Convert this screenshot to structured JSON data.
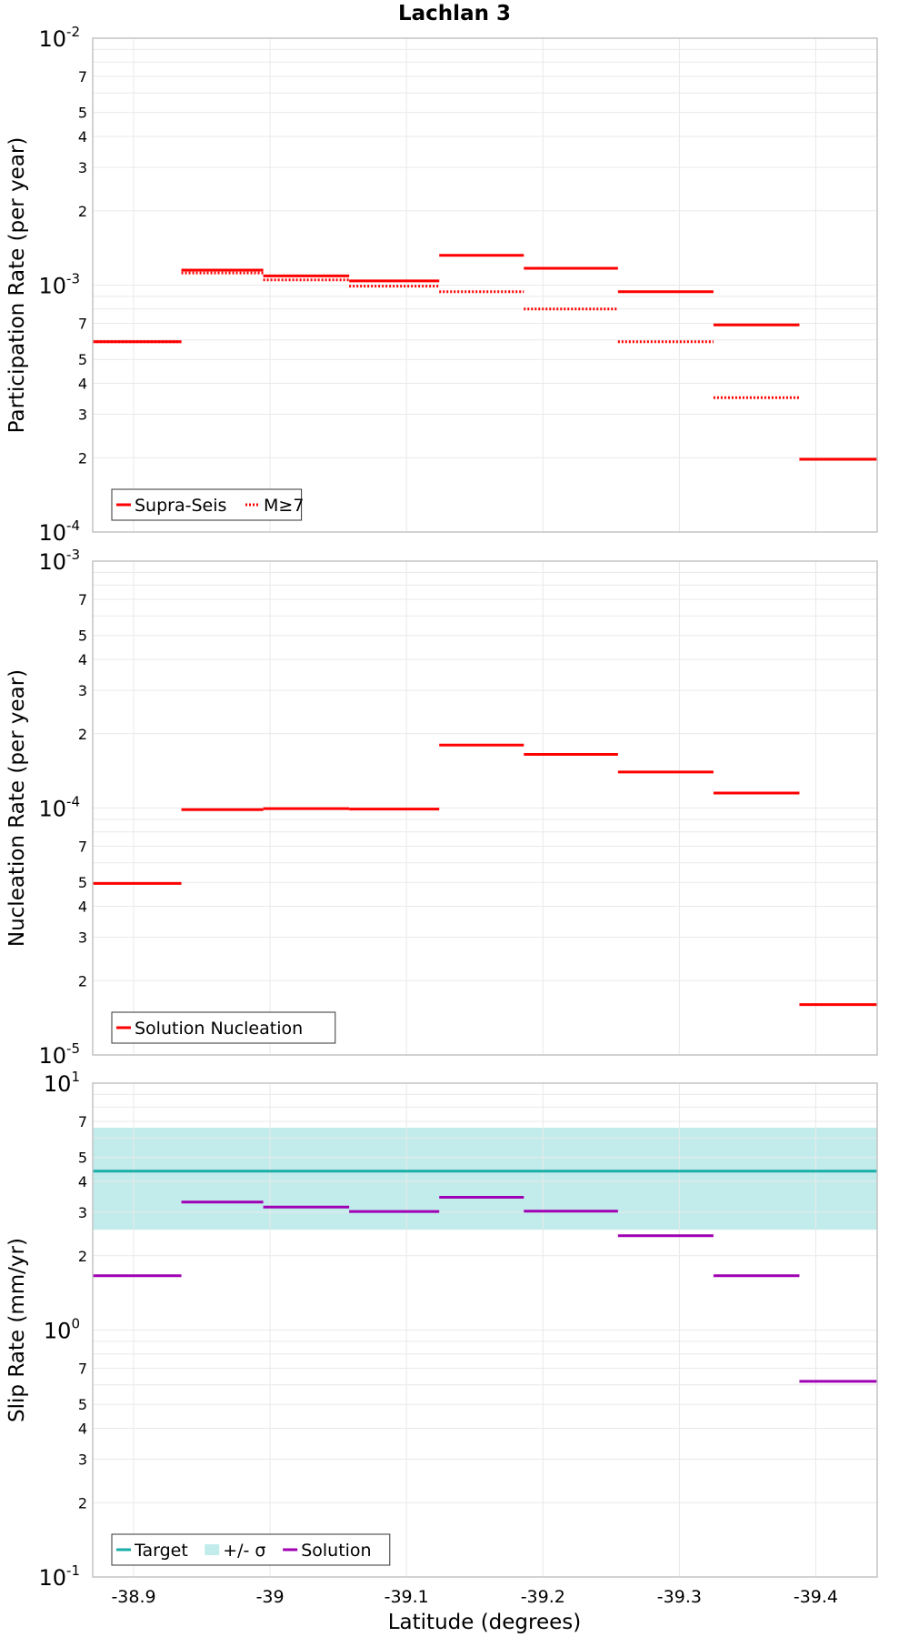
{
  "title": "Lachlan 3",
  "xlabel": "Latitude (degrees)",
  "x_ticks": [
    "-38.9",
    "-39",
    "-39.1",
    "-39.2",
    "-39.3",
    "-39.4"
  ],
  "colors": {
    "supra_seis": "#ff0000",
    "m7": "#ff0000",
    "nucleation": "#ff0000",
    "target": "#1aaea8",
    "sigma": "#c2ecec",
    "solution": "#a000b4"
  },
  "chart_data": [
    {
      "type": "line",
      "step": true,
      "yscale": "log",
      "xlim": [
        -38.87,
        -39.445
      ],
      "ylim": [
        0.0001,
        0.01
      ],
      "ylabel": "Participation Rate (per year)",
      "y_major_ticks": [
        {
          "base": "10",
          "exp": "-2"
        },
        {
          "base": "10",
          "exp": "-3"
        },
        {
          "base": "10",
          "exp": "-4"
        }
      ],
      "y_minor_ticks": [
        "7",
        "5",
        "4",
        "3",
        "2",
        "7",
        "5",
        "4",
        "3",
        "2"
      ],
      "legend": {
        "position": "bottom-left",
        "entries": [
          "Supra-Seis",
          "M≥7"
        ]
      },
      "series": [
        {
          "name": "Supra-Seis",
          "style": "solid",
          "segments": [
            {
              "x": [
                -38.87,
                -38.935
              ],
              "y": 0.00059
            },
            {
              "x": [
                -38.935,
                -38.995
              ],
              "y": 0.00115
            },
            {
              "x": [
                -38.995,
                -39.058
              ],
              "y": 0.00109
            },
            {
              "x": [
                -39.058,
                -39.124
              ],
              "y": 0.00104
            },
            {
              "x": [
                -39.124,
                -39.186
              ],
              "y": 0.00132
            },
            {
              "x": [
                -39.186,
                -39.255
              ],
              "y": 0.00117
            },
            {
              "x": [
                -39.255,
                -39.325
              ],
              "y": 0.00094
            },
            {
              "x": [
                -39.325,
                -39.388
              ],
              "y": 0.00069
            },
            {
              "x": [
                -39.388,
                -39.445
              ],
              "y": 0.000197
            }
          ]
        },
        {
          "name": "M≥7",
          "style": "dotted",
          "segments": [
            {
              "x": [
                -38.87,
                -38.935
              ],
              "y": 0.00059
            },
            {
              "x": [
                -38.935,
                -38.995
              ],
              "y": 0.00112
            },
            {
              "x": [
                -38.995,
                -39.058
              ],
              "y": 0.00105
            },
            {
              "x": [
                -39.058,
                -39.124
              ],
              "y": 0.00099
            },
            {
              "x": [
                -39.124,
                -39.186
              ],
              "y": 0.00094
            },
            {
              "x": [
                -39.186,
                -39.255
              ],
              "y": 0.0008
            },
            {
              "x": [
                -39.255,
                -39.325
              ],
              "y": 0.00059
            },
            {
              "x": [
                -39.325,
                -39.388
              ],
              "y": 0.00035
            },
            {
              "x": [
                -39.388,
                -39.445
              ],
              "y": 0.000197
            }
          ]
        }
      ]
    },
    {
      "type": "line",
      "step": true,
      "yscale": "log",
      "xlim": [
        -38.87,
        -39.445
      ],
      "ylim": [
        1e-05,
        0.001
      ],
      "ylabel": "Nucleation Rate (per year)",
      "y_major_ticks": [
        {
          "base": "10",
          "exp": "-3"
        },
        {
          "base": "10",
          "exp": "-4"
        },
        {
          "base": "10",
          "exp": "-5"
        }
      ],
      "y_minor_ticks": [
        "7",
        "5",
        "4",
        "3",
        "2",
        "7",
        "5",
        "4",
        "3",
        "2"
      ],
      "legend": {
        "position": "bottom-left",
        "entries": [
          "Solution Nucleation"
        ]
      },
      "series": [
        {
          "name": "Solution Nucleation",
          "style": "solid",
          "segments": [
            {
              "x": [
                -38.87,
                -38.935
              ],
              "y": 4.95e-05
            },
            {
              "x": [
                -38.935,
                -38.995
              ],
              "y": 9.85e-05
            },
            {
              "x": [
                -38.995,
                -39.058
              ],
              "y": 9.95e-05
            },
            {
              "x": [
                -39.058,
                -39.124
              ],
              "y": 9.9e-05
            },
            {
              "x": [
                -39.124,
                -39.186
              ],
              "y": 0.00018
            },
            {
              "x": [
                -39.186,
                -39.255
              ],
              "y": 0.000165
            },
            {
              "x": [
                -39.255,
                -39.325
              ],
              "y": 0.00014
            },
            {
              "x": [
                -39.325,
                -39.388
              ],
              "y": 0.000115
            },
            {
              "x": [
                -39.388,
                -39.445
              ],
              "y": 1.6e-05
            }
          ]
        }
      ]
    },
    {
      "type": "line",
      "step": true,
      "yscale": "log",
      "xlim": [
        -38.87,
        -39.445
      ],
      "ylim": [
        0.1,
        10
      ],
      "ylabel": "Slip Rate (mm/yr)",
      "y_major_ticks": [
        {
          "base": "10",
          "exp": "1"
        },
        {
          "base": "10",
          "exp": "0"
        },
        {
          "base": "10",
          "exp": "-1"
        }
      ],
      "y_minor_ticks": [
        "7",
        "5",
        "4",
        "3",
        "2",
        "7",
        "5",
        "4",
        "3",
        "2"
      ],
      "legend": {
        "position": "bottom-left",
        "entries": [
          "Target",
          "+/- σ",
          "Solution"
        ]
      },
      "target": {
        "value": 4.4,
        "sigma_low": 2.55,
        "sigma_high": 6.6
      },
      "series": [
        {
          "name": "Solution",
          "style": "solid",
          "segments": [
            {
              "x": [
                -38.87,
                -38.935
              ],
              "y": 1.66
            },
            {
              "x": [
                -38.935,
                -38.995
              ],
              "y": 3.3
            },
            {
              "x": [
                -38.995,
                -39.058
              ],
              "y": 3.15
            },
            {
              "x": [
                -39.058,
                -39.124
              ],
              "y": 3.02
            },
            {
              "x": [
                -39.124,
                -39.186
              ],
              "y": 3.45
            },
            {
              "x": [
                -39.186,
                -39.255
              ],
              "y": 3.03
            },
            {
              "x": [
                -39.255,
                -39.325
              ],
              "y": 2.41
            },
            {
              "x": [
                -39.325,
                -39.388
              ],
              "y": 1.66
            },
            {
              "x": [
                -39.388,
                -39.445
              ],
              "y": 0.62
            }
          ]
        }
      ]
    }
  ]
}
